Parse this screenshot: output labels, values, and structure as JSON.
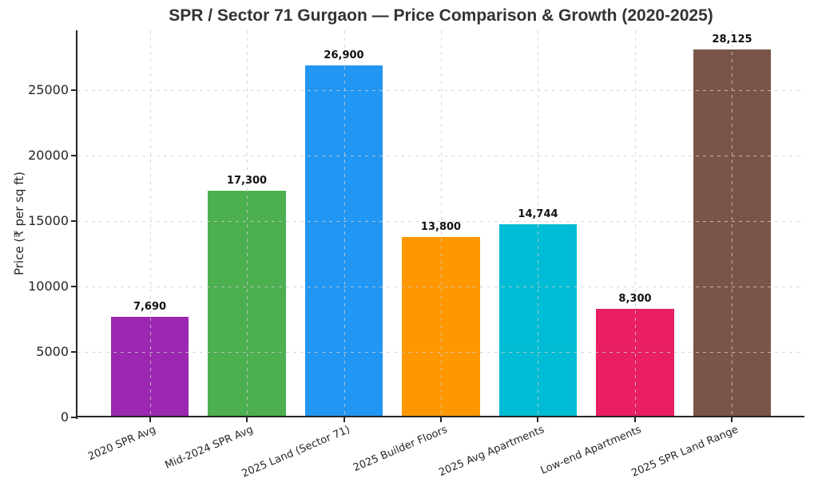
{
  "figure": {
    "title": "SPR / Sector 71 Gurgaon — Price Comparison & Growth (2020-2025)"
  },
  "chart_data": {
    "type": "bar",
    "title": "SPR / Sector 71 Gurgaon — Price Comparison & Growth (2020-2025)",
    "xlabel": "",
    "ylabel": "Price (₹ per sq ft)",
    "categories": [
      "2020 SPR Avg",
      "Mid-2024 SPR Avg",
      "2025 Land (Sector 71)",
      "2025 Builder Floors",
      "2025 Avg Apartments",
      "Low-end Apartments",
      "2025 SPR Land Range"
    ],
    "values": [
      7690,
      17300,
      26900,
      13800,
      14744,
      8300,
      28125
    ],
    "value_labels": [
      "7,690",
      "17,300",
      "26,900",
      "13,800",
      "14,744",
      "8,300",
      "28,125"
    ],
    "bar_colors": [
      "#9C27B0",
      "#4CAF50",
      "#2196F3",
      "#FF9800",
      "#00BCD4",
      "#E91E63",
      "#795548"
    ],
    "yticks": [
      0,
      5000,
      10000,
      15000,
      20000,
      25000
    ],
    "ytick_labels": [
      "0",
      "5000",
      "10000",
      "15000",
      "20000",
      "25000"
    ],
    "ylim": [
      0,
      29573
    ],
    "grid": {
      "which": "both",
      "linestyle": "dashed",
      "drawn_over_bars": true
    },
    "legend_position": "none",
    "bar_width_fraction": 0.8
  },
  "style_colors": {
    "background": "#ffffff",
    "axis_spine": "#262626",
    "tick_text": "#262626",
    "title_text": "#333333",
    "value_label_text": "#111111",
    "gridline": "#cdcdcd"
  }
}
